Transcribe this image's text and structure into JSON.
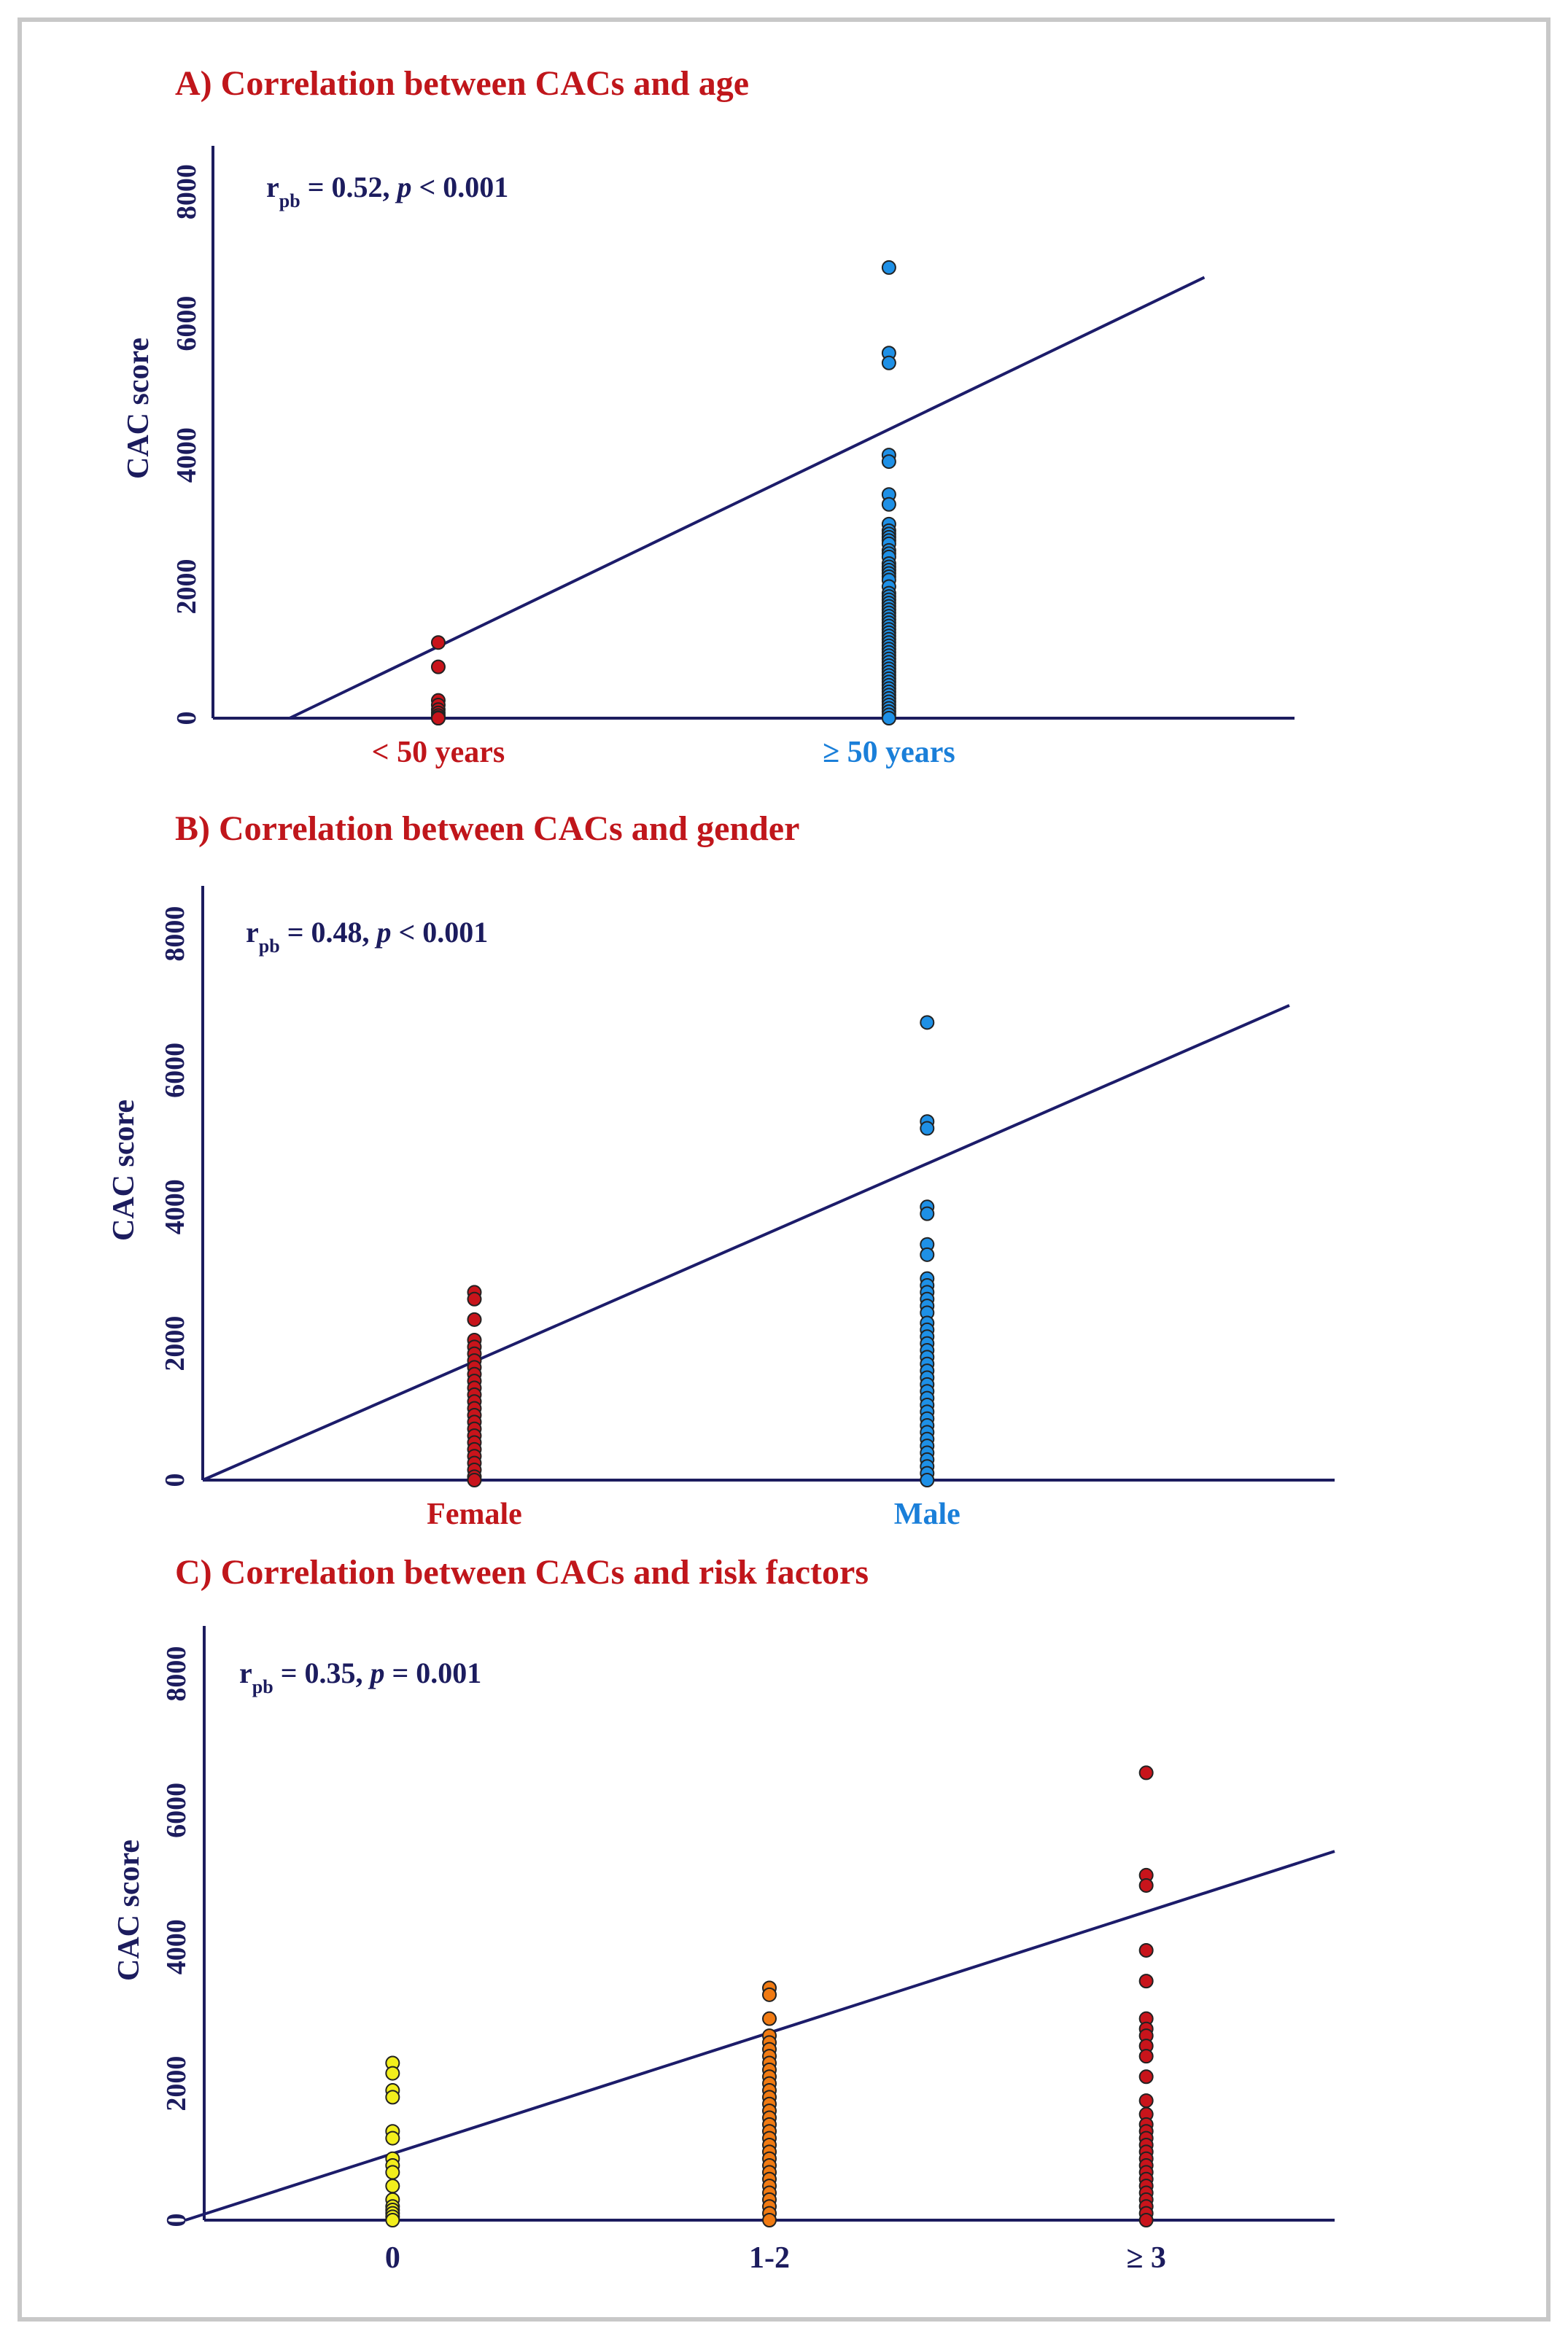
{
  "figure": {
    "axis_color": "#1c1c5e",
    "line_color": "#1c1c6a"
  },
  "chart_data": [
    {
      "type": "scatter",
      "panel": "A",
      "title": "A) Correlation between CACs and age",
      "stat": {
        "r_label": "r",
        "r_sub": "pb",
        "r_value": " = 0.52, ",
        "p_label": "p",
        "p_value": " < 0.001"
      },
      "ylabel": "CAC score",
      "ylim": [
        0,
        8700
      ],
      "yticks": [
        0,
        2000,
        4000,
        6000,
        8000
      ],
      "xlim": [
        -0.5,
        1.9
      ],
      "categories": [
        "< 50 years",
        "≥ 50 years"
      ],
      "category_colors": [
        "#c0161b",
        "#1a7fd9"
      ],
      "point_colors": [
        "#c8141b",
        "#1e90e6"
      ],
      "fit_line": [
        [
          -0.33,
          0
        ],
        [
          1.7,
          6700
        ]
      ],
      "series": [
        {
          "name": "< 50 years",
          "x": 0,
          "values": [
            1150,
            780,
            270,
            200,
            130,
            80,
            40,
            10,
            0,
            0
          ]
        },
        {
          "name": "≥ 50 years",
          "x": 1,
          "values": [
            6850,
            5550,
            5400,
            4000,
            3900,
            3400,
            3250,
            2950,
            2850,
            2800,
            2750,
            2700,
            2650,
            2550,
            2500,
            2450,
            2350,
            2300,
            2250,
            2200,
            2150,
            2100,
            2000,
            1900,
            1850,
            1800,
            1750,
            1700,
            1650,
            1600,
            1550,
            1500,
            1450,
            1400,
            1350,
            1300,
            1250,
            1200,
            1150,
            1100,
            1050,
            1000,
            950,
            900,
            850,
            800,
            750,
            700,
            650,
            600,
            550,
            500,
            450,
            400,
            350,
            300,
            250,
            200,
            150,
            100,
            50,
            0
          ]
        }
      ]
    },
    {
      "type": "scatter",
      "panel": "B",
      "title": "B) Correlation between CACs and gender",
      "stat": {
        "r_label": "r",
        "r_sub": "pb",
        "r_value": " = 0.48, ",
        "p_label": "p",
        "p_value": " < 0.001"
      },
      "ylabel": "CAC score",
      "ylim": [
        0,
        8700
      ],
      "yticks": [
        0,
        2000,
        4000,
        6000,
        8000
      ],
      "xlim": [
        -0.6,
        1.9
      ],
      "categories": [
        "Female",
        "Male"
      ],
      "category_colors": [
        "#c0161b",
        "#1a7fd9"
      ],
      "point_colors": [
        "#c8141b",
        "#1e90e6"
      ],
      "fit_line": [
        [
          -0.6,
          0
        ],
        [
          1.8,
          6950
        ]
      ],
      "series": [
        {
          "name": "Female",
          "x": 0,
          "values": [
            2750,
            2650,
            2350,
            2050,
            1950,
            1850,
            1750,
            1650,
            1550,
            1450,
            1350,
            1250,
            1150,
            1050,
            950,
            850,
            750,
            650,
            550,
            450,
            350,
            250,
            150,
            50,
            0
          ]
        },
        {
          "name": "Male",
          "x": 1,
          "values": [
            6700,
            5250,
            5150,
            4000,
            3900,
            3450,
            3300,
            2950,
            2850,
            2750,
            2650,
            2550,
            2450,
            2300,
            2200,
            2100,
            2000,
            1900,
            1800,
            1700,
            1600,
            1500,
            1400,
            1300,
            1200,
            1100,
            1000,
            900,
            800,
            700,
            600,
            500,
            400,
            300,
            200,
            100,
            0
          ]
        }
      ]
    },
    {
      "type": "scatter",
      "panel": "C",
      "title": "C) Correlation between CACs and risk factors",
      "stat": {
        "r_label": "r",
        "r_sub": "pb",
        "r_value": " = 0.35, ",
        "p_label": "p",
        "p_value": " = 0.001"
      },
      "ylabel": "CAC score",
      "ylim": [
        0,
        8700
      ],
      "yticks": [
        0,
        2000,
        4000,
        6000,
        8000
      ],
      "xlim": [
        -0.5,
        2.5
      ],
      "categories": [
        "0",
        "1-2",
        "≥ 3"
      ],
      "category_colors": [
        "#1c1c5e",
        "#1c1c5e",
        "#1c1c5e"
      ],
      "point_colors": [
        "#f2ee1c",
        "#f07a12",
        "#c8141b"
      ],
      "fit_line": [
        [
          -0.55,
          0
        ],
        [
          2.5,
          5400
        ]
      ],
      "series": [
        {
          "name": "0",
          "x": 0,
          "values": [
            2300,
            2150,
            1900,
            1800,
            1300,
            1200,
            900,
            800,
            700,
            500,
            300,
            200,
            150,
            100,
            50,
            0
          ]
        },
        {
          "name": "1-2",
          "x": 1,
          "values": [
            3400,
            3300,
            2950,
            2700,
            2600,
            2500,
            2400,
            2300,
            2200,
            2100,
            2000,
            1900,
            1800,
            1700,
            1600,
            1500,
            1400,
            1300,
            1200,
            1100,
            1000,
            900,
            800,
            700,
            600,
            500,
            400,
            300,
            200,
            100,
            0
          ]
        },
        {
          "name": "≥ 3",
          "x": 2,
          "values": [
            6550,
            5050,
            4900,
            3950,
            3500,
            2950,
            2800,
            2700,
            2550,
            2400,
            2100,
            1750,
            1550,
            1400,
            1300,
            1200,
            1100,
            1000,
            900,
            800,
            700,
            600,
            500,
            400,
            300,
            200,
            100,
            0
          ]
        }
      ]
    }
  ]
}
